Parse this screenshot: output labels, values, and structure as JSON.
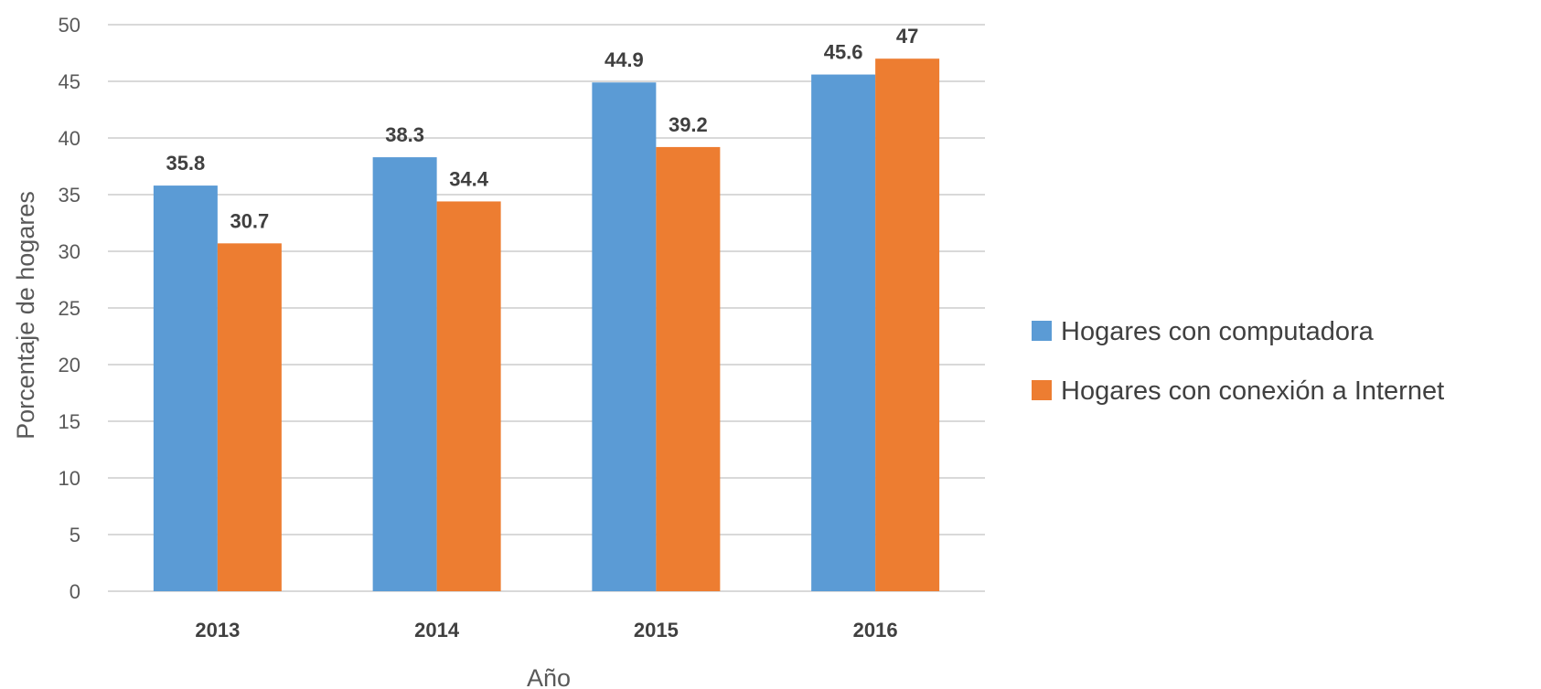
{
  "chart_data": {
    "type": "bar",
    "title": "",
    "categories": [
      "2013",
      "2014",
      "2015",
      "2016"
    ],
    "series": [
      {
        "name": "Hogares con computadora",
        "values": [
          35.8,
          38.3,
          44.9,
          45.6
        ],
        "labels": [
          "35.8",
          "38.3",
          "44.9",
          "45.6"
        ],
        "color": "#5B9BD5"
      },
      {
        "name": "Hogares con conexión a Internet",
        "values": [
          30.7,
          34.4,
          39.2,
          47
        ],
        "labels": [
          "30.7",
          "34.4",
          "39.2",
          "47"
        ],
        "color": "#ED7D31"
      }
    ],
    "xlabel": "Año",
    "ylabel": "Porcentaje de hogares",
    "ylim": [
      0,
      50
    ],
    "yticks": [
      0,
      5,
      10,
      15,
      20,
      25,
      30,
      35,
      40,
      45,
      50
    ],
    "ytick_labels": [
      "0",
      "5",
      "10",
      "15",
      "20",
      "25",
      "30",
      "35",
      "40",
      "45",
      "50"
    ],
    "grid": true,
    "legend_position": "right",
    "gridline_color": "#D9D9D9"
  }
}
